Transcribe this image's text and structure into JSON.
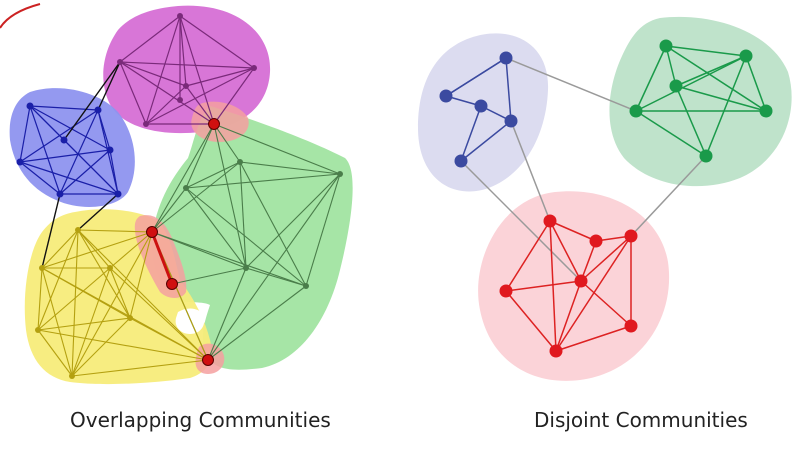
{
  "captions": {
    "left": "Overlapping Communities",
    "right": "Disjoint Communities"
  },
  "colors": {
    "purple": "#b24cb0",
    "blue": "#2a2fd0",
    "green": "#4e8b4e",
    "yellow": "#c9b41a",
    "red": "#d01818",
    "navy": "#3b4aa0",
    "darkgreen": "#1a9a4a",
    "gray": "#9a9a9a"
  }
}
